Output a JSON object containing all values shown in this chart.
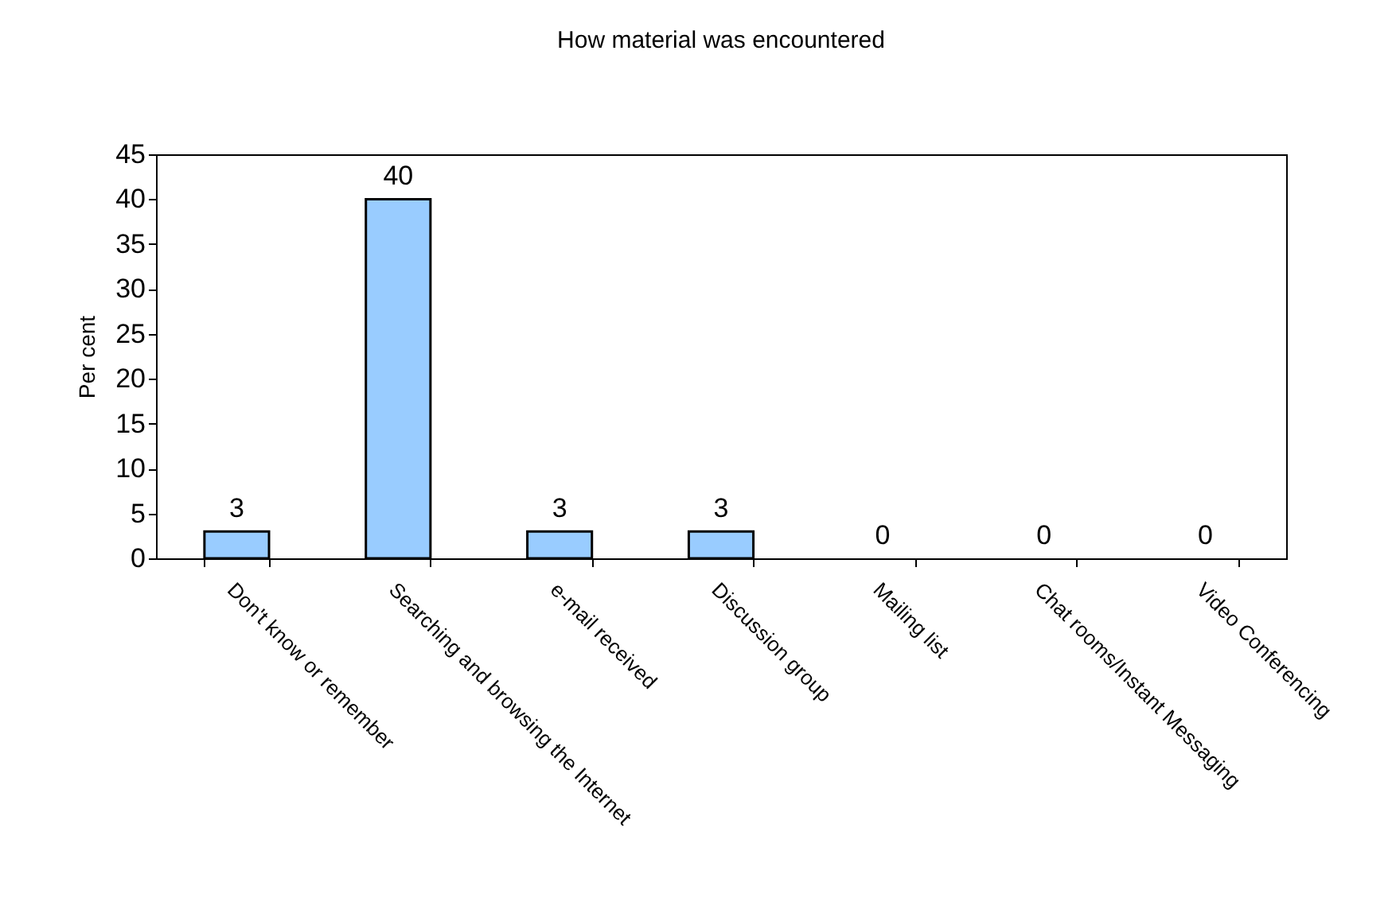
{
  "chart_data": {
    "type": "bar",
    "title": "How material was encountered",
    "ylabel": "Per cent",
    "categories": [
      "Don't know or remember",
      "Searching and browsing the Internet",
      "e-mail received",
      "Discussion group",
      "Mailing list",
      "Chat rooms/Instant Messaging",
      "Video Conferencing"
    ],
    "values": [
      3,
      40,
      3,
      3,
      0,
      0,
      0
    ],
    "color": "#99ccff",
    "ylim": [
      0,
      45
    ],
    "yticks": [
      0,
      5,
      10,
      15,
      20,
      25,
      30,
      35,
      40,
      45
    ],
    "grid": false,
    "data_labels": true
  }
}
